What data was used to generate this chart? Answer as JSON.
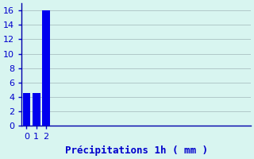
{
  "categories": [
    0,
    1,
    2
  ],
  "values": [
    4.5,
    4.5,
    16.0
  ],
  "bar_color": "#0000ee",
  "background_color": "#d8f5f0",
  "xlabel": "Précipitations 1h ( mm )",
  "xlabel_color": "#0000cc",
  "tick_color": "#0000cc",
  "grid_color": "#b0c8c8",
  "axis_color": "#0000aa",
  "ylim": [
    0,
    17
  ],
  "xlim": [
    -0.5,
    23
  ],
  "yticks": [
    0,
    2,
    4,
    6,
    8,
    10,
    12,
    14,
    16
  ],
  "xticks": [
    0,
    1,
    2
  ],
  "bar_width": 0.8,
  "xlabel_fontsize": 9,
  "tick_fontsize": 8
}
